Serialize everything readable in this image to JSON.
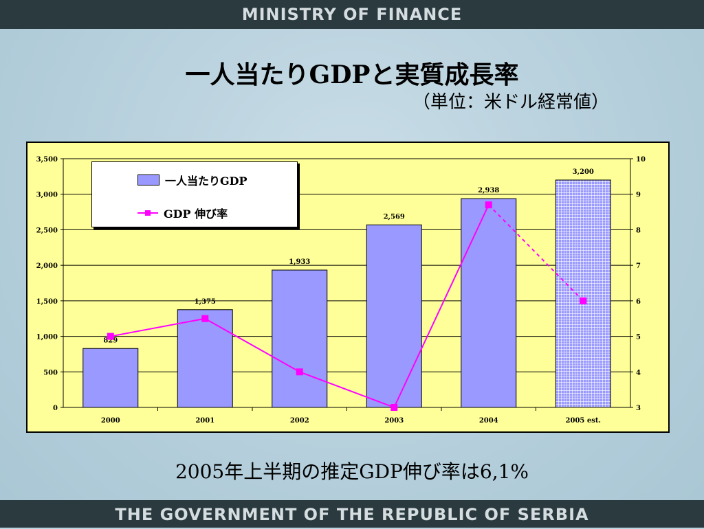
{
  "header": {
    "banner": "MINISTRY OF FINANCE"
  },
  "footer": {
    "banner": "THE GOVERNMENT OF THE REPUBLIC OF SERBIA"
  },
  "title": "一人当たりGDPと実質成長率",
  "subtitle": "（単位：米ドル経常値）",
  "footnote": "2005年上半期の推定GDP伸び率は6,1%",
  "legend": {
    "bar_label": "一人当たりGDP",
    "line_label": "GDP 伸び率"
  },
  "colors": {
    "bar": "#9999ff",
    "line": "#ff00ff",
    "plot_bg": "#ffff99"
  },
  "chart_data": {
    "type": "bar+line",
    "categories": [
      "2000",
      "2001",
      "2002",
      "2003",
      "2004",
      "2005 est."
    ],
    "series": [
      {
        "name": "一人当たりGDP",
        "type": "bar",
        "axis": "left",
        "values": [
          829,
          1375,
          1933,
          2569,
          2938,
          3200
        ],
        "labels": [
          "829",
          "1,375",
          "1,933",
          "2,569",
          "2,938",
          "3,200"
        ]
      },
      {
        "name": "GDP 伸び率",
        "type": "line",
        "axis": "right",
        "values": [
          5.0,
          5.5,
          4.0,
          3.0,
          8.7,
          6.0
        ]
      }
    ],
    "y_left": {
      "min": 0,
      "max": 3500,
      "step": 500,
      "tick_labels": [
        "0",
        "500",
        "1,000",
        "1,500",
        "2,000",
        "2,500",
        "3,000",
        "3,500"
      ]
    },
    "y_right": {
      "min": 3,
      "max": 10,
      "step": 1,
      "tick_labels": [
        "3",
        "4",
        "5",
        "6",
        "7",
        "8",
        "9",
        "10"
      ]
    },
    "estimated_category": "2005 est.",
    "grid": true,
    "legend_position": "top-left"
  }
}
